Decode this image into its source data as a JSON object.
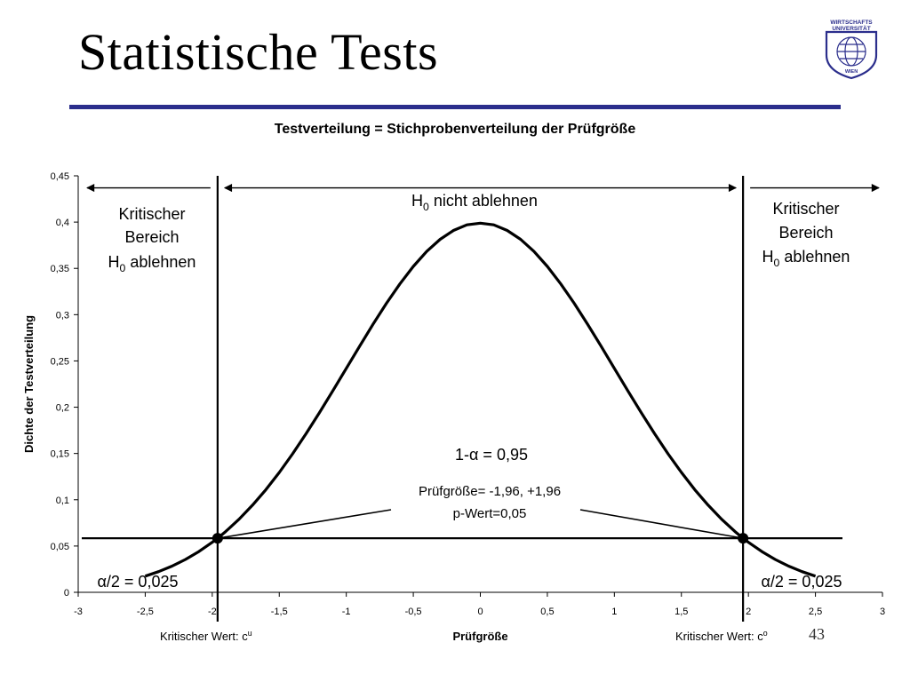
{
  "slide": {
    "title": "Statistische Tests",
    "number": "43",
    "rule_color": "#2b2e8c",
    "logo": {
      "name": "wirtschaftsuniversitaet-wien-logo",
      "line1": "WIRTSCHAFTS",
      "line2": "UNIVERSITÄT",
      "line3": "WIEN",
      "color": "#2b2e8c"
    }
  },
  "chart_data": {
    "type": "line",
    "title": "Testverteilung = Stichprobenverteilung der Prüfgröße",
    "xlabel": "Prüfgröße",
    "ylabel": "Dichte der Testverteilung",
    "xlim": [
      -3,
      3
    ],
    "ylim": [
      0,
      0.45
    ],
    "x_ticks": [
      "-3",
      "-2,5",
      "-2",
      "-1,5",
      "-1",
      "-0,5",
      "0",
      "0,5",
      "1",
      "1,5",
      "2",
      "2,5",
      "3"
    ],
    "x_tick_values": [
      -3,
      -2.5,
      -2,
      -1.5,
      -1,
      -0.5,
      0,
      0.5,
      1,
      1.5,
      2,
      2.5,
      3
    ],
    "y_ticks": [
      "0",
      "0,05",
      "0,1",
      "0,15",
      "0,2",
      "0,25",
      "0,3",
      "0,35",
      "0,4",
      "0,45"
    ],
    "y_tick_values": [
      0,
      0.05,
      0.1,
      0.15,
      0.2,
      0.25,
      0.3,
      0.35,
      0.4,
      0.45
    ],
    "grid": false,
    "series": [
      {
        "x": [
          -2.5,
          -2.4,
          -2.3,
          -2.2,
          -2.1,
          -2.0,
          -1.96,
          -1.9,
          -1.8,
          -1.7,
          -1.6,
          -1.5,
          -1.4,
          -1.3,
          -1.2,
          -1.1,
          -1.0,
          -0.9,
          -0.8,
          -0.7,
          -0.6,
          -0.5,
          -0.4,
          -0.3,
          -0.2,
          -0.1,
          0.0,
          0.1,
          0.2,
          0.3,
          0.4,
          0.5,
          0.6,
          0.7,
          0.8,
          0.9,
          1.0,
          1.1,
          1.2,
          1.3,
          1.4,
          1.5,
          1.6,
          1.7,
          1.8,
          1.9,
          1.96,
          2.0,
          2.1,
          2.2,
          2.3,
          2.4,
          2.5
        ],
        "y": [
          0.0175,
          0.0224,
          0.0283,
          0.0355,
          0.044,
          0.054,
          0.0584,
          0.0656,
          0.079,
          0.0941,
          0.1109,
          0.1295,
          0.1497,
          0.1714,
          0.1942,
          0.2179,
          0.242,
          0.2661,
          0.2897,
          0.3123,
          0.3332,
          0.3521,
          0.3683,
          0.3814,
          0.391,
          0.397,
          0.3989,
          0.397,
          0.391,
          0.3814,
          0.3683,
          0.3521,
          0.3332,
          0.3123,
          0.2897,
          0.2661,
          0.242,
          0.2179,
          0.1942,
          0.1714,
          0.1497,
          0.1295,
          0.1109,
          0.0941,
          0.079,
          0.0656,
          0.0584,
          0.054,
          0.044,
          0.0355,
          0.0283,
          0.0224,
          0.0175
        ]
      }
    ],
    "critical_values": [
      -1.96,
      1.96
    ],
    "horizontal_line_y": 0.0584,
    "region_arrows": {
      "left": {
        "from": -3,
        "to": -1.96,
        "y": 0.437
      },
      "middle": {
        "from": -1.96,
        "to": 1.96,
        "y": 0.437
      },
      "right": {
        "from": 1.96,
        "to": 3,
        "y": 0.437
      }
    },
    "annotations": {
      "h0_not_reject": {
        "prefix": "H",
        "sub": "0",
        "suffix": " nicht ablehnen"
      },
      "left_region": {
        "line1": "Kritischer",
        "line2": "Bereich",
        "line3_prefix": "H",
        "line3_sub": "0",
        "line3_suffix": " ablehnen"
      },
      "right_region": {
        "line1": "Kritischer",
        "line2": "Bereich",
        "line3_prefix": "H",
        "line3_sub": "0",
        "line3_suffix": " ablehnen"
      },
      "one_minus_alpha": "1-α = 0,95",
      "test_statistic": "Prüfgröße= -1,96, +1,96",
      "p_value": "p-Wert=0,05",
      "alpha_half_left": "α/2 = 0,025",
      "alpha_half_right": "α/2 = 0,025",
      "critical_lower": {
        "text": "Kritischer Wert: c",
        "sup": "u"
      },
      "critical_upper": {
        "text": "Kritischer Wert: c",
        "sup": "o"
      }
    }
  }
}
